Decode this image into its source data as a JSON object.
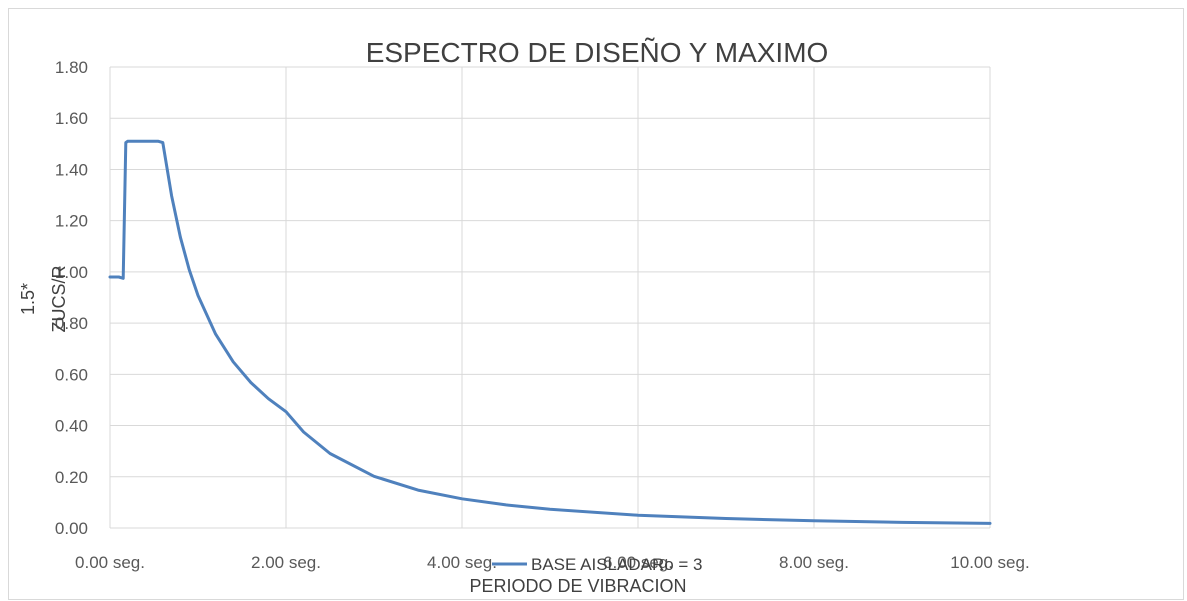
{
  "chart_data": {
    "type": "line",
    "title": "ESPECTRO DE DISEÑO Y MAXIMO",
    "xlabel": "PERIODO DE VIBRACION",
    "ylabel_lines": [
      "1.5*",
      "ZUCS/R"
    ],
    "xlim": [
      0,
      10
    ],
    "ylim": [
      0,
      1.8
    ],
    "grid": true,
    "legend_position": "bottom",
    "x_ticks": [
      {
        "value": 0,
        "label": "0.00 seg."
      },
      {
        "value": 2,
        "label": "2.00 seg."
      },
      {
        "value": 4,
        "label": "4.00 seg."
      },
      {
        "value": 6,
        "label": "6.00 seg."
      },
      {
        "value": 8,
        "label": "8.00 seg."
      },
      {
        "value": 10,
        "label": "10.00 seg."
      }
    ],
    "y_ticks": [
      {
        "value": 0,
        "label": "0.00"
      },
      {
        "value": 0.2,
        "label": "0.20"
      },
      {
        "value": 0.4,
        "label": "0.40"
      },
      {
        "value": 0.6,
        "label": "0.60"
      },
      {
        "value": 0.8,
        "label": "0.80"
      },
      {
        "value": 1.0,
        "label": "1.00"
      },
      {
        "value": 1.2,
        "label": "1.20"
      },
      {
        "value": 1.4,
        "label": "1.40"
      },
      {
        "value": 1.6,
        "label": "1.60"
      },
      {
        "value": 1.8,
        "label": "1.80"
      }
    ],
    "series": [
      {
        "name": "BASE AISLADARo = 3",
        "color": "#4f81bd",
        "x": [
          0,
          0.05,
          0.1,
          0.15,
          0.18,
          0.2,
          0.3,
          0.4,
          0.5,
          0.55,
          0.6,
          0.7,
          0.8,
          0.9,
          1.0,
          1.2,
          1.4,
          1.6,
          1.8,
          2.0,
          2.2,
          2.5,
          3.0,
          3.5,
          4.0,
          4.5,
          5.0,
          6.0,
          7.0,
          8.0,
          9.0,
          10.0
        ],
        "y": [
          0.98,
          0.98,
          0.98,
          0.975,
          1.505,
          1.51,
          1.51,
          1.51,
          1.51,
          1.51,
          1.505,
          1.297,
          1.135,
          1.009,
          0.908,
          0.757,
          0.649,
          0.568,
          0.505,
          0.454,
          0.375,
          0.291,
          0.202,
          0.148,
          0.114,
          0.09,
          0.073,
          0.05,
          0.037,
          0.028,
          0.022,
          0.018
        ]
      }
    ]
  }
}
